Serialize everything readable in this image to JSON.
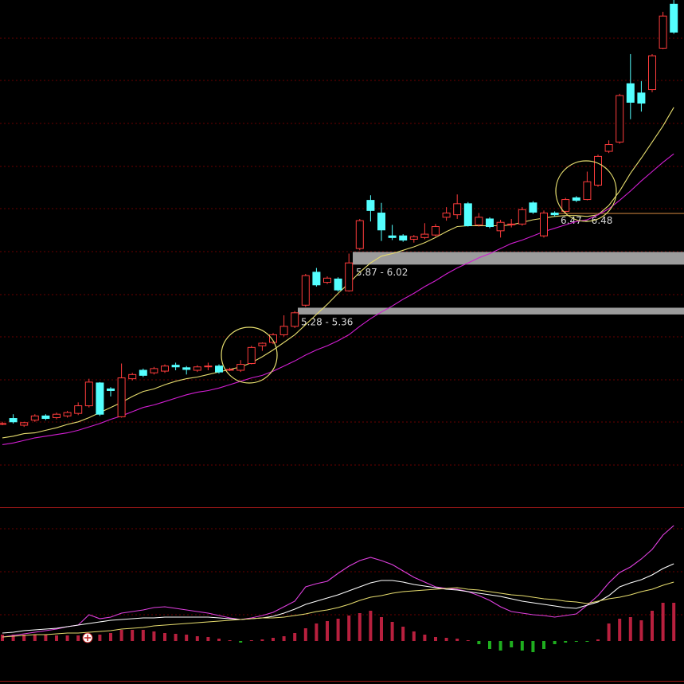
{
  "chart_data": [
    {
      "type": "candlestick",
      "up_color": "#ff3c3c",
      "down_color": "#54ffff",
      "ylim": [
        3,
        9
      ],
      "open": [
        3.99,
        4.05,
        3.97,
        4.03,
        4.08,
        4.06,
        4.08,
        4.11,
        4.2,
        4.47,
        4.4,
        4.07,
        4.52,
        4.62,
        4.59,
        4.61,
        4.68,
        4.65,
        4.62,
        4.67,
        4.67,
        4.63,
        4.62,
        4.7,
        4.91,
        4.95,
        5.04,
        5.14,
        5.39,
        5.78,
        5.66,
        5.7,
        5.56,
        6.06,
        6.63,
        6.48,
        6.21,
        6.21,
        6.17,
        6.19,
        6.22,
        6.43,
        6.46,
        6.59,
        6.34,
        6.41,
        6.27,
        6.35,
        6.35,
        6.6,
        6.21,
        6.48,
        6.5,
        6.66,
        6.64,
        6.81,
        7.21,
        7.32,
        8.01,
        7.9,
        7.94,
        8.43,
        8.95
      ],
      "high": [
        4.01,
        4.1,
        4.01,
        4.1,
        4.1,
        4.12,
        4.14,
        4.24,
        4.52,
        4.48,
        4.42,
        4.7,
        4.59,
        4.64,
        4.66,
        4.69,
        4.71,
        4.67,
        4.68,
        4.71,
        4.69,
        4.65,
        4.74,
        4.91,
        4.95,
        5.06,
        5.27,
        5.32,
        5.76,
        5.83,
        5.73,
        5.72,
        6.0,
        6.41,
        6.69,
        6.6,
        6.34,
        6.23,
        6.22,
        6.36,
        6.35,
        6.55,
        6.7,
        6.61,
        6.48,
        6.43,
        6.4,
        6.41,
        6.55,
        6.62,
        6.51,
        6.5,
        6.66,
        6.68,
        6.97,
        7.17,
        7.34,
        7.89,
        8.36,
        8.04,
        8.36,
        8.86,
        9.0
      ],
      "low": [
        3.97,
        3.99,
        3.95,
        4.01,
        4.03,
        4.04,
        4.06,
        4.09,
        4.18,
        4.08,
        4.31,
        4.06,
        4.5,
        4.54,
        4.57,
        4.59,
        4.62,
        4.57,
        4.6,
        4.62,
        4.58,
        4.61,
        4.6,
        4.69,
        4.85,
        4.93,
        5.02,
        5.12,
        5.37,
        5.61,
        5.64,
        5.55,
        5.55,
        6.04,
        6.38,
        6.15,
        6.16,
        6.14,
        6.13,
        6.17,
        6.2,
        6.39,
        6.41,
        6.32,
        6.32,
        6.3,
        6.19,
        6.31,
        6.33,
        6.47,
        6.19,
        6.44,
        6.48,
        6.61,
        6.63,
        6.79,
        7.19,
        7.3,
        7.59,
        7.68,
        7.91,
        8.42,
        8.6
      ],
      "close": [
        3.99,
        4.01,
        4.0,
        4.08,
        4.05,
        4.1,
        4.12,
        4.2,
        4.48,
        4.1,
        4.38,
        4.53,
        4.57,
        4.56,
        4.64,
        4.67,
        4.66,
        4.63,
        4.66,
        4.67,
        4.6,
        4.63,
        4.69,
        4.89,
        4.94,
        5.04,
        5.14,
        5.3,
        5.74,
        5.63,
        5.71,
        5.57,
        5.89,
        6.39,
        6.51,
        6.28,
        6.19,
        6.16,
        6.2,
        6.23,
        6.32,
        6.48,
        6.59,
        6.33,
        6.43,
        6.32,
        6.37,
        6.35,
        6.52,
        6.49,
        6.48,
        6.46,
        6.64,
        6.63,
        6.85,
        7.15,
        7.29,
        7.87,
        7.79,
        7.78,
        8.34,
        8.81,
        8.62
      ],
      "lines": [
        {
          "color": "#e6dc6e",
          "values": [
            3.82,
            3.84,
            3.87,
            3.88,
            3.91,
            3.94,
            3.98,
            4.01,
            4.06,
            4.12,
            4.18,
            4.24,
            4.31,
            4.37,
            4.4,
            4.45,
            4.49,
            4.52,
            4.54,
            4.57,
            4.6,
            4.63,
            4.66,
            4.71,
            4.78,
            4.86,
            4.95,
            5.04,
            5.16,
            5.28,
            5.4,
            5.53,
            5.65,
            5.78,
            5.89,
            5.97,
            6.0,
            6.04,
            6.08,
            6.13,
            6.19,
            6.26,
            6.32,
            6.33,
            6.33,
            6.33,
            6.33,
            6.34,
            6.37,
            6.4,
            6.42,
            6.44,
            6.45,
            6.45,
            6.44,
            6.46,
            6.57,
            6.74,
            6.95,
            7.13,
            7.32,
            7.51,
            7.73
          ]
        },
        {
          "color": "#d21ed2",
          "values": [
            3.74,
            3.76,
            3.79,
            3.82,
            3.84,
            3.86,
            3.88,
            3.91,
            3.95,
            3.99,
            4.04,
            4.08,
            4.13,
            4.18,
            4.21,
            4.25,
            4.29,
            4.33,
            4.36,
            4.38,
            4.41,
            4.45,
            4.49,
            4.53,
            4.56,
            4.61,
            4.67,
            4.73,
            4.8,
            4.86,
            4.91,
            4.97,
            5.04,
            5.14,
            5.23,
            5.31,
            5.38,
            5.46,
            5.53,
            5.61,
            5.68,
            5.76,
            5.83,
            5.89,
            5.95,
            6.0,
            6.06,
            6.12,
            6.16,
            6.21,
            6.26,
            6.3,
            6.34,
            6.38,
            6.4,
            6.46,
            6.53,
            6.63,
            6.74,
            6.86,
            6.97,
            7.08,
            7.18
          ]
        }
      ],
      "zones": [
        {
          "label": "5.87 - 6.02",
          "low": 5.87,
          "high": 6.02,
          "color": "#9c9c9c"
        },
        {
          "label": "5.28 - 5.36",
          "low": 5.28,
          "high": 5.36,
          "color": "#9c9c9c"
        },
        {
          "label": "6.47 - 6.48",
          "low": 6.47,
          "high": 6.48,
          "color": "#c8803c"
        }
      ]
    },
    {
      "type": "macd",
      "up_color": "#b8203e",
      "down_color": "#1fae1f",
      "ylim": [
        -0.05,
        0.16
      ],
      "histogram": [
        0.008,
        0.008,
        0.008,
        0.008,
        0.008,
        0.007,
        0.007,
        0.007,
        0.007,
        0.008,
        0.01,
        0.014,
        0.014,
        0.014,
        0.012,
        0.01,
        0.009,
        0.008,
        0.006,
        0.005,
        0.003,
        0.001,
        -0.002,
        0.001,
        0.002,
        0.004,
        0.006,
        0.01,
        0.016,
        0.022,
        0.025,
        0.028,
        0.032,
        0.035,
        0.038,
        0.03,
        0.024,
        0.018,
        0.012,
        0.008,
        0.005,
        0.004,
        0.003,
        0.001,
        -0.004,
        -0.01,
        -0.012,
        -0.008,
        -0.012,
        -0.014,
        -0.01,
        -0.004,
        -0.002,
        -0.001,
        -0.001,
        0.002,
        0.022,
        0.028,
        0.03,
        0.026,
        0.038,
        0.048,
        0.048
      ],
      "lines": [
        {
          "color": "#e040e0",
          "values": [
            0.005,
            0.007,
            0.009,
            0.011,
            0.013,
            0.015,
            0.018,
            0.02,
            0.033,
            0.028,
            0.03,
            0.035,
            0.037,
            0.039,
            0.042,
            0.043,
            0.041,
            0.039,
            0.037,
            0.035,
            0.032,
            0.029,
            0.027,
            0.029,
            0.032,
            0.036,
            0.043,
            0.05,
            0.068,
            0.072,
            0.075,
            0.085,
            0.094,
            0.101,
            0.105,
            0.101,
            0.096,
            0.088,
            0.08,
            0.074,
            0.068,
            0.066,
            0.065,
            0.062,
            0.057,
            0.051,
            0.043,
            0.037,
            0.035,
            0.033,
            0.032,
            0.03,
            0.032,
            0.034,
            0.045,
            0.057,
            0.073,
            0.086,
            0.093,
            0.103,
            0.115,
            0.133,
            0.145
          ]
        },
        {
          "color": "#ffffff",
          "values": [
            0.01,
            0.011,
            0.013,
            0.014,
            0.015,
            0.016,
            0.018,
            0.02,
            0.022,
            0.024,
            0.026,
            0.027,
            0.028,
            0.029,
            0.029,
            0.03,
            0.03,
            0.03,
            0.03,
            0.03,
            0.029,
            0.028,
            0.027,
            0.028,
            0.029,
            0.031,
            0.035,
            0.04,
            0.046,
            0.05,
            0.054,
            0.058,
            0.063,
            0.068,
            0.073,
            0.076,
            0.076,
            0.074,
            0.071,
            0.069,
            0.067,
            0.065,
            0.064,
            0.062,
            0.06,
            0.058,
            0.056,
            0.053,
            0.05,
            0.048,
            0.046,
            0.044,
            0.042,
            0.041,
            0.045,
            0.049,
            0.057,
            0.068,
            0.073,
            0.077,
            0.083,
            0.091,
            0.097
          ]
        },
        {
          "color": "#e6dc6e",
          "values": [
            0.005,
            0.006,
            0.007,
            0.008,
            0.008,
            0.009,
            0.01,
            0.01,
            0.011,
            0.012,
            0.013,
            0.015,
            0.016,
            0.017,
            0.019,
            0.02,
            0.021,
            0.022,
            0.023,
            0.024,
            0.025,
            0.026,
            0.027,
            0.028,
            0.029,
            0.029,
            0.03,
            0.032,
            0.034,
            0.037,
            0.039,
            0.042,
            0.046,
            0.051,
            0.055,
            0.057,
            0.06,
            0.062,
            0.063,
            0.064,
            0.065,
            0.066,
            0.067,
            0.065,
            0.064,
            0.062,
            0.06,
            0.058,
            0.057,
            0.055,
            0.053,
            0.052,
            0.05,
            0.049,
            0.047,
            0.05,
            0.053,
            0.055,
            0.058,
            0.062,
            0.065,
            0.07,
            0.074
          ]
        }
      ]
    }
  ]
}
